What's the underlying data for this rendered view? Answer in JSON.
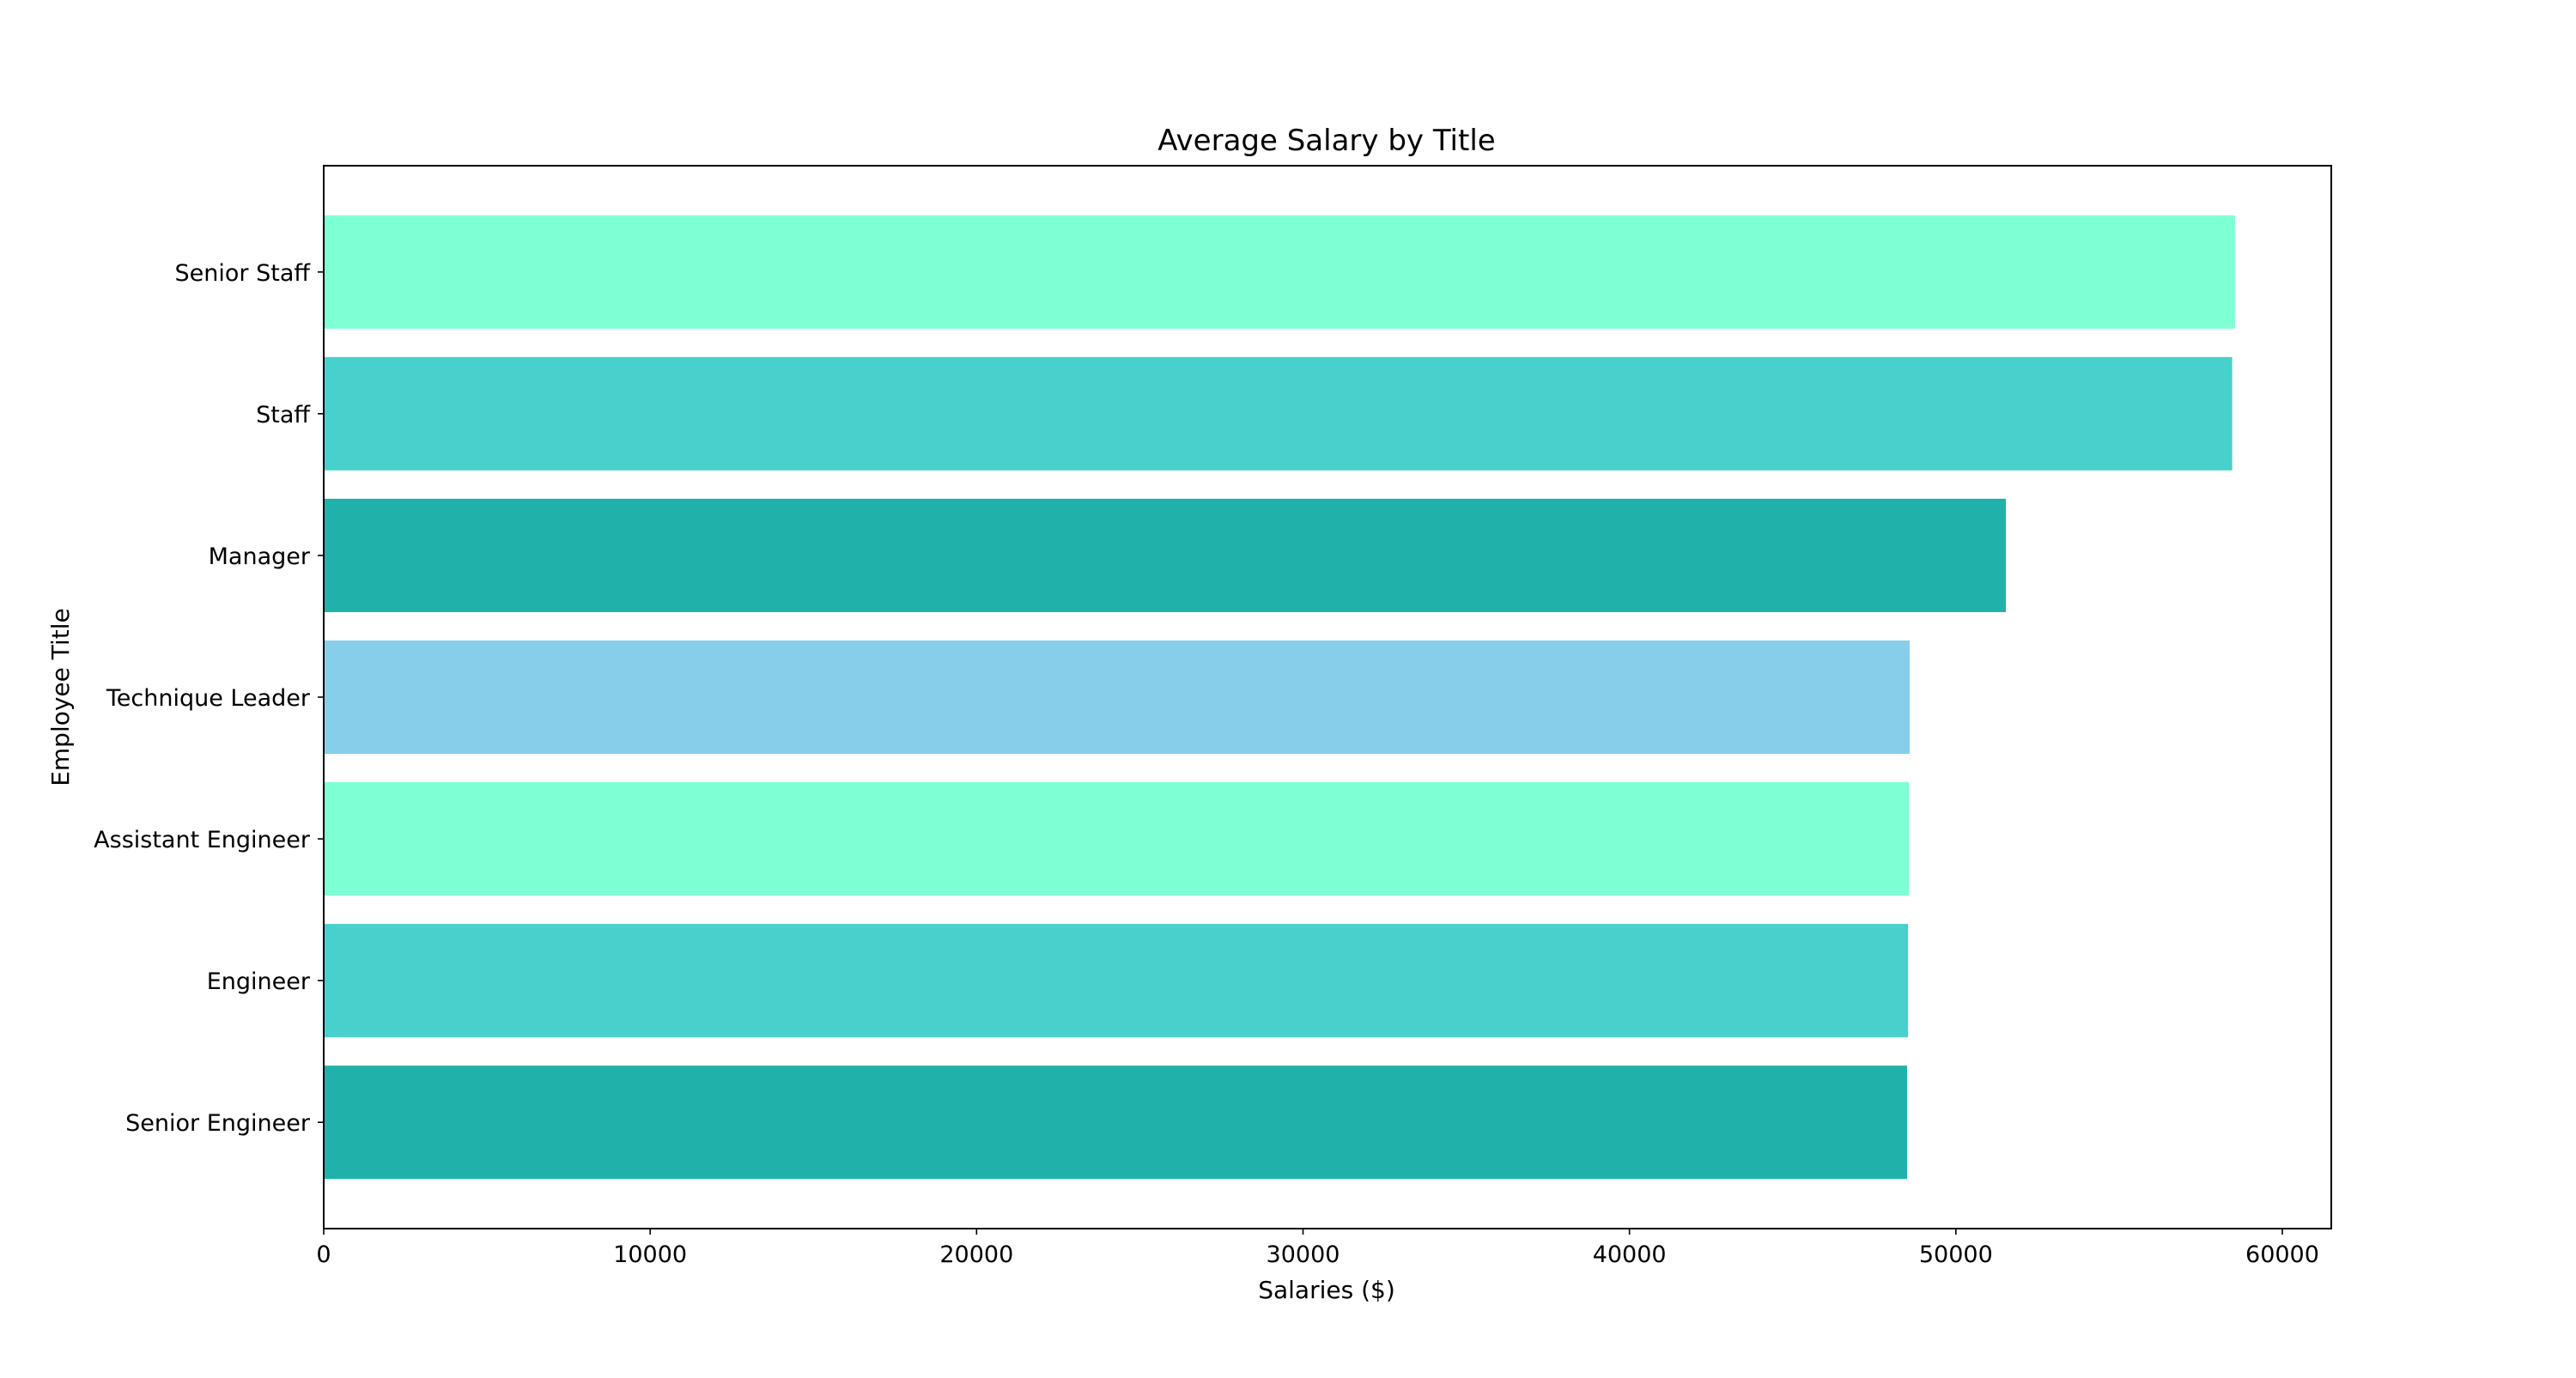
{
  "chart_data": {
    "type": "bar",
    "orientation": "horizontal",
    "title": "Average Salary by Title",
    "xlabel": "Salaries ($)",
    "ylabel": "Employee Title",
    "categories": [
      "Senior Engineer",
      "Engineer",
      "Assistant Engineer",
      "Technique Leader",
      "Manager",
      "Staff",
      "Senior Staff"
    ],
    "values": [
      48506,
      48535,
      48564,
      48583,
      51531,
      58465,
      58550
    ],
    "bar_colors": [
      "#20B2AA",
      "#48D1CC",
      "#7FFFD4",
      "#87CEEB",
      "#20B2AA",
      "#48D1CC",
      "#7FFFD4"
    ],
    "xlim": [
      0,
      61500
    ],
    "xticks": [
      0,
      10000,
      20000,
      30000,
      40000,
      50000,
      60000
    ],
    "xtick_labels": [
      "0",
      "10000",
      "20000",
      "30000",
      "40000",
      "50000",
      "60000"
    ],
    "grid": false,
    "legend": null
  }
}
